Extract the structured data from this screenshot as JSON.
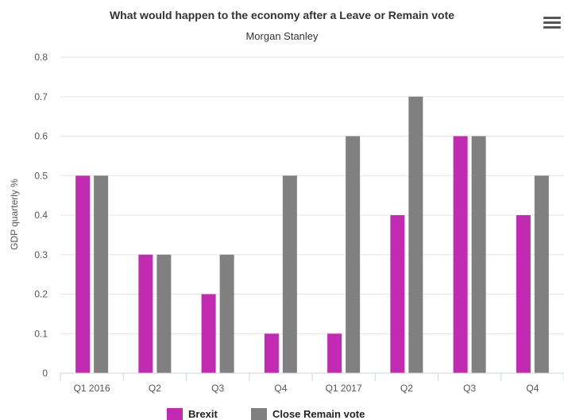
{
  "chart_data": {
    "type": "bar",
    "title": "What would happen to the economy after a Leave or Remain vote",
    "subtitle": "Morgan Stanley",
    "ylabel": "GDP quarterly %",
    "xlabel": "",
    "categories": [
      "Q1 2016",
      "Q2",
      "Q3",
      "Q4",
      "Q1 2017",
      "Q2",
      "Q3",
      "Q4"
    ],
    "ylim": [
      0,
      0.8
    ],
    "yticks": [
      0,
      0.1,
      0.2,
      0.3,
      0.4,
      0.5,
      0.6,
      0.7,
      0.8
    ],
    "grid": true,
    "legend_position": "bottom-center",
    "series": [
      {
        "name": "Brexit",
        "color": "#c22bb1",
        "values": [
          0.5,
          0.3,
          0.2,
          0.1,
          0.1,
          0.4,
          0.6,
          0.4
        ]
      },
      {
        "name": "Close Remain vote",
        "color": "#808080",
        "values": [
          0.5,
          0.3,
          0.3,
          0.5,
          0.6,
          0.7,
          0.6,
          0.5
        ]
      }
    ]
  },
  "menu": {
    "icon": "hamburger-menu-icon"
  }
}
